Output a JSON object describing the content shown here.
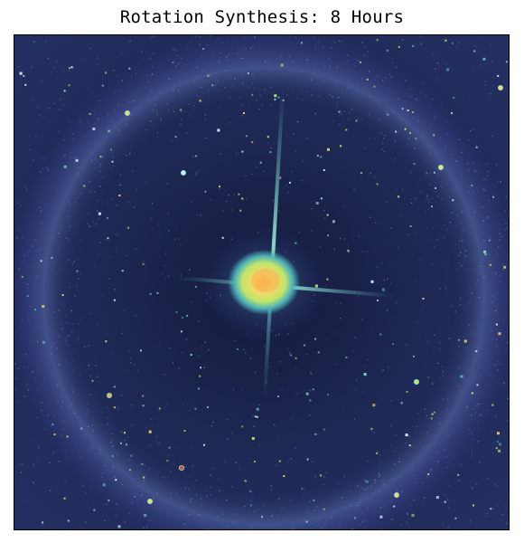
{
  "title": "Rotation Synthesis: 8 Hours",
  "image": {
    "subject": "synthesized-radio-image",
    "colormap": [
      "#1f2a55",
      "#3b3f8f",
      "#5a6fb0",
      "#4fb3b8",
      "#bfe56a",
      "#f5d86a",
      "#f6b04f",
      "#e0472e"
    ],
    "background": "#1f2a55",
    "frame_color": "#000000"
  }
}
